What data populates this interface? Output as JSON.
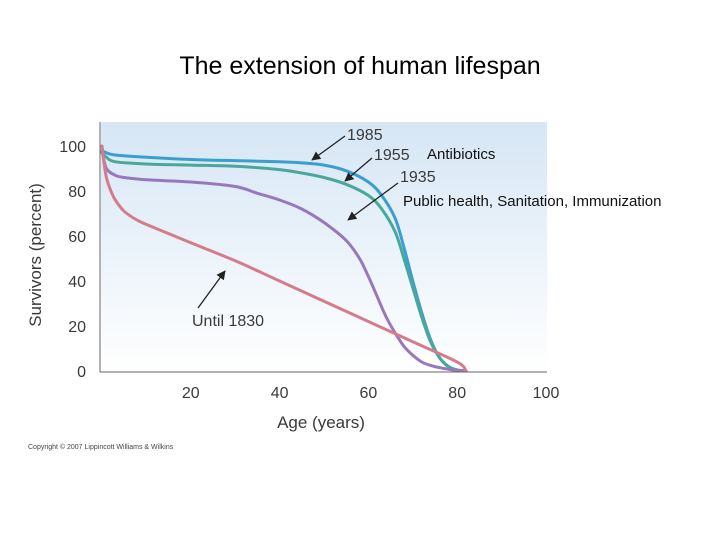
{
  "title": "The extension of human lifespan",
  "copyright": "Copyright © 2007 Lippincott Williams & Wilkins",
  "chart_data": {
    "type": "line",
    "xlabel": "Age (years)",
    "ylabel": "Survivors (percent)",
    "xlim": [
      0,
      100
    ],
    "ylim": [
      0,
      100
    ],
    "x_ticks": [
      "20",
      "40",
      "60",
      "80",
      "100"
    ],
    "y_ticks": [
      "0",
      "20",
      "40",
      "60",
      "80",
      "100"
    ],
    "grid": false,
    "series": [
      {
        "name": "1985",
        "color": "#3a9fd0",
        "x": [
          0,
          1,
          3,
          10,
          20,
          30,
          40,
          45,
          50,
          55,
          60,
          63,
          66,
          68,
          70,
          72,
          74,
          76,
          78,
          80,
          82
        ],
        "y": [
          98,
          97,
          96,
          95,
          94,
          93.5,
          93,
          92.5,
          91.5,
          89,
          84,
          78,
          68,
          55,
          40,
          26,
          14,
          6,
          2,
          0.5,
          0
        ]
      },
      {
        "name": "1955",
        "color": "#4aa89a",
        "x": [
          0,
          1,
          3,
          10,
          20,
          30,
          40,
          45,
          50,
          55,
          60,
          63,
          66,
          68,
          70,
          72,
          74,
          76,
          78,
          80,
          82
        ],
        "y": [
          97,
          95,
          93,
          92,
          91.5,
          91,
          89.5,
          88,
          86,
          83,
          78,
          72,
          62,
          50,
          37,
          24,
          13,
          6,
          2,
          0.5,
          0
        ]
      },
      {
        "name": "1935",
        "color": "#9878bd",
        "x": [
          0,
          1,
          3,
          5,
          10,
          20,
          30,
          35,
          40,
          45,
          50,
          55,
          58,
          60,
          62,
          64,
          66,
          68,
          70,
          72,
          74,
          76,
          78,
          80,
          82
        ],
        "y": [
          98,
          90,
          87,
          86,
          85,
          84,
          82,
          79,
          76,
          72,
          66,
          58,
          50,
          42,
          33,
          24,
          17,
          11,
          7,
          4,
          2.5,
          1.5,
          0.8,
          0.3,
          0
        ]
      },
      {
        "name": "Until 1830",
        "color": "#d47c8a",
        "x": [
          0,
          0.5,
          1,
          2,
          3,
          5,
          8,
          12,
          20,
          30,
          40,
          50,
          60,
          70,
          80,
          82
        ],
        "y": [
          100,
          92,
          86,
          80,
          76,
          71,
          67,
          63.5,
          57,
          49,
          40,
          31,
          22,
          13,
          4,
          0
        ]
      }
    ],
    "annotations": [
      {
        "text": "1985"
      },
      {
        "text": "1955"
      },
      {
        "text": "1935"
      },
      {
        "text": "Until 1830"
      }
    ],
    "notes": [
      "Antibiotics",
      "Public health, Sanitation, Immunization"
    ]
  }
}
